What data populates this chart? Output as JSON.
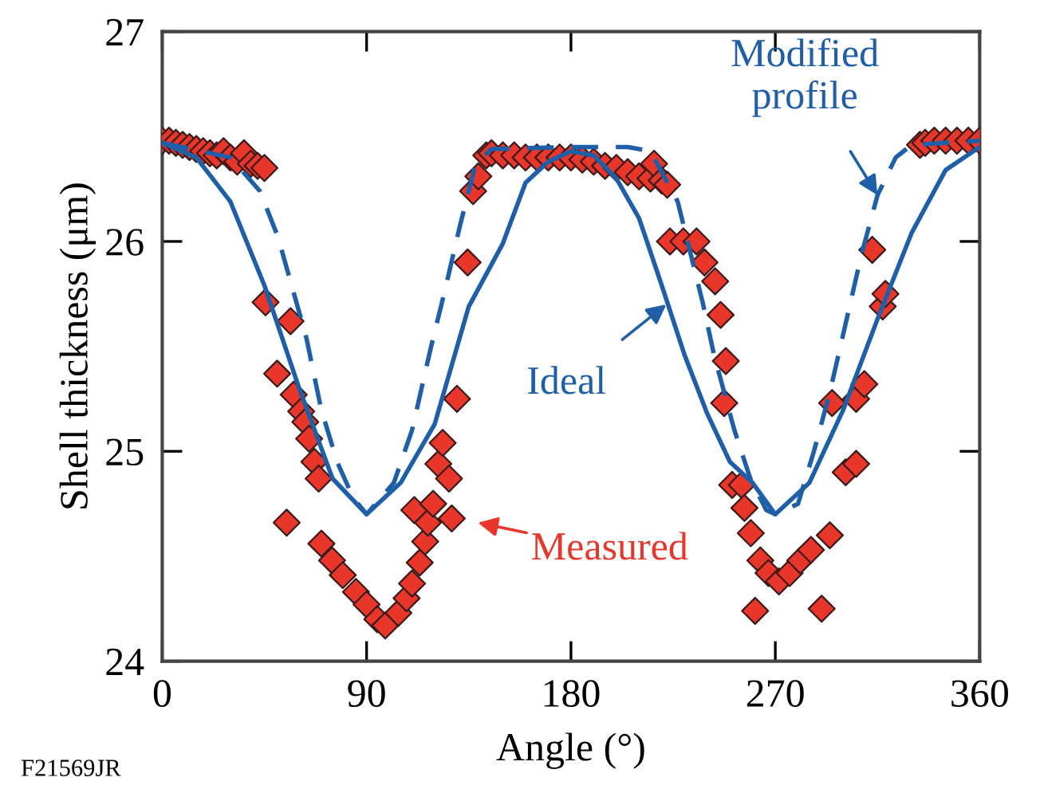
{
  "chart_data": {
    "type": "line",
    "xlabel": "Angle (°)",
    "ylabel": "Shell thickness (μm)",
    "xlim": [
      0,
      360
    ],
    "ylim": [
      24,
      27
    ],
    "xticks": [
      0,
      90,
      180,
      270,
      360
    ],
    "yticks": [
      24,
      25,
      26,
      27
    ],
    "grid": false,
    "legend": false,
    "series": [
      {
        "color": "#1f5fa8",
        "line_style": "solid",
        "x": [
          0,
          15,
          30,
          45,
          60,
          75,
          90,
          105,
          120,
          135,
          150,
          160,
          170,
          180,
          190,
          200,
          210,
          220,
          230,
          240,
          250,
          260,
          270,
          285,
          300,
          315,
          330,
          345,
          360
        ],
        "values": [
          26.47,
          26.4,
          26.19,
          25.79,
          25.31,
          24.87,
          24.7,
          24.85,
          25.13,
          25.69,
          25.99,
          26.28,
          26.38,
          26.43,
          26.41,
          26.3,
          26.11,
          25.79,
          25.46,
          25.18,
          24.95,
          24.85,
          24.7,
          24.85,
          25.2,
          25.63,
          26.04,
          26.34,
          26.45
        ]
      },
      {
        "color": "#1f5fa8",
        "line_style": "dashed",
        "x": [
          0,
          30,
          43,
          51,
          57,
          63.5,
          70,
          77,
          84,
          90,
          102,
          110,
          118,
          125,
          131,
          138,
          145,
          180,
          205,
          215,
          227,
          238,
          243,
          252,
          259,
          266,
          270,
          280,
          287,
          294,
          301,
          308,
          315,
          323,
          330,
          360
        ],
        "values": [
          26.47,
          26.4,
          26.24,
          26.02,
          25.79,
          25.54,
          25.2,
          24.95,
          24.78,
          24.7,
          24.85,
          25.1,
          25.48,
          25.79,
          26.07,
          26.37,
          26.44,
          26.45,
          26.45,
          26.43,
          26.19,
          25.71,
          25.46,
          25.1,
          24.87,
          24.72,
          24.7,
          24.75,
          25.0,
          25.28,
          25.61,
          25.94,
          26.22,
          26.4,
          26.46,
          26.48
        ]
      },
      {
        "type": "scatter",
        "color": "#e8372a",
        "marker": "diamond",
        "x": [
          0,
          3,
          6,
          9,
          12,
          15,
          18,
          21,
          24,
          27,
          30,
          33,
          36,
          39,
          42,
          45,
          45.5,
          56.5,
          50.6,
          57.9,
          61.2,
          63,
          64.7,
          67,
          68.9,
          54.8,
          70.1,
          74.8,
          79.5,
          85.3,
          90,
          94.7,
          98.2,
          104,
          107.6,
          110,
          113.4,
          115.8,
          117,
          111,
          119.3,
          127.5,
          121.6,
          126.3,
          123.5,
          129.8,
          134.5,
          136.9,
          139.2,
          142.7,
          145,
          150,
          155,
          160,
          165,
          170,
          175,
          180,
          185,
          190,
          195,
          200,
          205,
          210,
          215,
          216.6,
          220,
          222.4,
          223.6,
          229.5,
          235.3,
          238.8,
          243.5,
          245.9,
          248.2,
          247.5,
          251,
          255.2,
          256.4,
          259.2,
          263.4,
          267,
          271.6,
          276.3,
          281,
          285.7,
          294,
          261.1,
          290.4,
          301,
          305.6,
          295,
          305.6,
          309.2,
          317.3,
          318.5,
          312.7,
          333.7,
          336,
          340,
          345,
          350,
          355,
          360
        ],
        "values": [
          26.48,
          26.48,
          26.47,
          26.46,
          26.45,
          26.44,
          26.43,
          26.42,
          26.41,
          26.43,
          26.4,
          26.38,
          26.42,
          26.37,
          26.36,
          26.35,
          25.71,
          25.62,
          25.37,
          25.27,
          25.19,
          25.14,
          25.06,
          24.95,
          24.87,
          24.66,
          24.56,
          24.48,
          24.41,
          24.33,
          24.27,
          24.2,
          24.17,
          24.23,
          24.3,
          24.37,
          24.47,
          24.57,
          24.66,
          24.72,
          24.75,
          24.68,
          24.94,
          24.87,
          25.04,
          25.25,
          25.9,
          26.24,
          26.31,
          26.41,
          26.42,
          26.41,
          26.41,
          26.4,
          26.4,
          26.4,
          26.4,
          26.4,
          26.39,
          26.38,
          26.36,
          26.35,
          26.33,
          26.31,
          26.3,
          26.37,
          26.29,
          26.27,
          26.0,
          26.0,
          26.0,
          25.9,
          25.81,
          25.65,
          25.43,
          25.23,
          24.84,
          24.84,
          24.73,
          24.61,
          24.48,
          24.42,
          24.38,
          24.42,
          24.48,
          24.53,
          24.6,
          24.24,
          24.25,
          24.9,
          24.94,
          25.23,
          25.25,
          25.32,
          25.69,
          25.75,
          25.96,
          26.46,
          26.47,
          26.48,
          26.48,
          26.48,
          26.48,
          26.48
        ]
      }
    ],
    "annotations": [
      {
        "text": "Modified\nprofile",
        "x": 315,
        "y": 26.22
      },
      {
        "text": "Ideal",
        "x": 222,
        "y": 25.7
      },
      "Measured",
      "F21569JR"
    ]
  }
}
